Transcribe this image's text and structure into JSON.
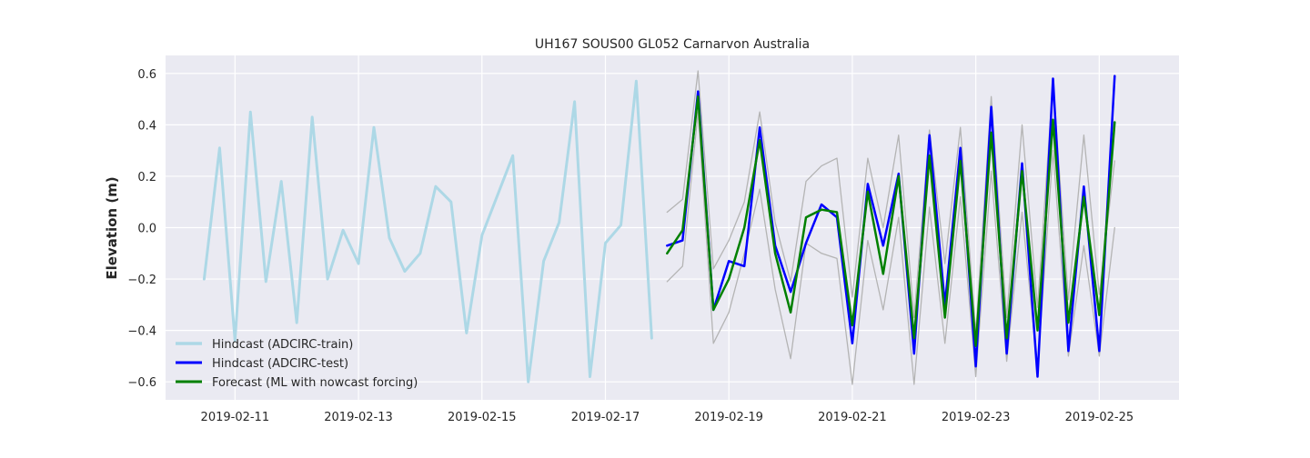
{
  "chart_data": {
    "type": "line",
    "title": "UH167 SOUS00 GL052 Carnarvon Australia",
    "xlabel": "",
    "ylabel": "Elevation (m)",
    "x_axis": "date",
    "xlim": [
      "2019-02-09T21:00",
      "2019-02-26T07:00"
    ],
    "ylim": [
      -0.67,
      0.67
    ],
    "x_ticks": [
      "2019-02-11",
      "2019-02-13",
      "2019-02-15",
      "2019-02-17",
      "2019-02-19",
      "2019-02-21",
      "2019-02-23",
      "2019-02-25"
    ],
    "y_ticks": [
      -0.6,
      -0.4,
      -0.2,
      0.0,
      0.2,
      0.4,
      0.6
    ],
    "y_tick_labels": [
      "−0.6",
      "−0.4",
      "−0.2",
      "0.0",
      "0.2",
      "0.4",
      "0.6"
    ],
    "grid": true,
    "legend_position": "lower-left",
    "background": "#eaeaf2",
    "series": [
      {
        "name": "Hindcast (ADCIRC-train)",
        "color": "#add8e6",
        "width": 3,
        "in_legend": true,
        "points": [
          [
            "2019-02-10T12:00",
            -0.2
          ],
          [
            "2019-02-10T18:00",
            0.31
          ],
          [
            "2019-02-11T00:00",
            -0.44
          ],
          [
            "2019-02-11T06:00",
            0.45
          ],
          [
            "2019-02-11T12:00",
            -0.21
          ],
          [
            "2019-02-11T18:00",
            0.18
          ],
          [
            "2019-02-12T00:00",
            -0.37
          ],
          [
            "2019-02-12T06:00",
            0.43
          ],
          [
            "2019-02-12T12:00",
            -0.2
          ],
          [
            "2019-02-12T18:00",
            -0.01
          ],
          [
            "2019-02-13T00:00",
            -0.14
          ],
          [
            "2019-02-13T06:00",
            0.39
          ],
          [
            "2019-02-13T12:00",
            -0.04
          ],
          [
            "2019-02-13T18:00",
            -0.17
          ],
          [
            "2019-02-14T00:00",
            -0.1
          ],
          [
            "2019-02-14T06:00",
            0.16
          ],
          [
            "2019-02-14T12:00",
            0.1
          ],
          [
            "2019-02-14T18:00",
            -0.41
          ],
          [
            "2019-02-15T00:00",
            -0.03
          ],
          [
            "2019-02-15T12:00",
            0.28
          ],
          [
            "2019-02-15T18:00",
            -0.6
          ],
          [
            "2019-02-16T00:00",
            -0.13
          ],
          [
            "2019-02-16T06:00",
            0.02
          ],
          [
            "2019-02-16T12:00",
            0.49
          ],
          [
            "2019-02-16T18:00",
            -0.58
          ],
          [
            "2019-02-17T00:00",
            -0.06
          ],
          [
            "2019-02-17T06:00",
            0.01
          ],
          [
            "2019-02-17T12:00",
            0.57
          ],
          [
            "2019-02-17T18:00",
            -0.43
          ]
        ]
      },
      {
        "name": "",
        "color": "#b4b4b4",
        "width": 1.3,
        "in_legend": false,
        "points": [
          [
            "2019-02-18T00:00",
            0.06
          ],
          [
            "2019-02-18T06:00",
            0.11
          ],
          [
            "2019-02-18T12:00",
            0.61
          ],
          [
            "2019-02-18T18:00",
            -0.16
          ],
          [
            "2019-02-19T00:00",
            -0.05
          ],
          [
            "2019-02-19T06:00",
            0.1
          ],
          [
            "2019-02-19T12:00",
            0.45
          ],
          [
            "2019-02-19T18:00",
            0.02
          ],
          [
            "2019-02-20T00:00",
            -0.21
          ],
          [
            "2019-02-20T06:00",
            0.18
          ],
          [
            "2019-02-20T12:00",
            0.24
          ],
          [
            "2019-02-20T18:00",
            0.27
          ],
          [
            "2019-02-21T00:00",
            -0.27
          ],
          [
            "2019-02-21T06:00",
            0.27
          ],
          [
            "2019-02-21T12:00",
            0.0
          ],
          [
            "2019-02-21T18:00",
            0.36
          ],
          [
            "2019-02-22T00:00",
            -0.35
          ],
          [
            "2019-02-22T06:00",
            0.38
          ],
          [
            "2019-02-22T12:00",
            -0.14
          ],
          [
            "2019-02-22T18:00",
            0.39
          ],
          [
            "2019-02-23T00:00",
            -0.41
          ],
          [
            "2019-02-23T06:00",
            0.51
          ],
          [
            "2019-02-23T12:00",
            -0.35
          ],
          [
            "2019-02-23T18:00",
            0.4
          ],
          [
            "2019-02-24T00:00",
            -0.31
          ],
          [
            "2019-02-24T06:00",
            0.57
          ],
          [
            "2019-02-24T12:00",
            -0.28
          ],
          [
            "2019-02-24T18:00",
            0.36
          ],
          [
            "2019-02-25T00:00",
            -0.26
          ],
          [
            "2019-02-25T06:00",
            0.26
          ]
        ]
      },
      {
        "name": "",
        "color": "#b4b4b4",
        "width": 1.3,
        "in_legend": false,
        "points": [
          [
            "2019-02-18T00:00",
            -0.21
          ],
          [
            "2019-02-18T06:00",
            -0.15
          ],
          [
            "2019-02-18T12:00",
            0.45
          ],
          [
            "2019-02-18T18:00",
            -0.45
          ],
          [
            "2019-02-19T00:00",
            -0.33
          ],
          [
            "2019-02-19T06:00",
            -0.1
          ],
          [
            "2019-02-19T12:00",
            0.15
          ],
          [
            "2019-02-19T18:00",
            -0.24
          ],
          [
            "2019-02-20T00:00",
            -0.51
          ],
          [
            "2019-02-20T06:00",
            -0.06
          ],
          [
            "2019-02-20T12:00",
            -0.1
          ],
          [
            "2019-02-20T18:00",
            -0.12
          ],
          [
            "2019-02-21T00:00",
            -0.61
          ],
          [
            "2019-02-21T06:00",
            -0.05
          ],
          [
            "2019-02-21T12:00",
            -0.32
          ],
          [
            "2019-02-21T18:00",
            0.04
          ],
          [
            "2019-02-22T00:00",
            -0.61
          ],
          [
            "2019-02-22T06:00",
            0.08
          ],
          [
            "2019-02-22T12:00",
            -0.45
          ],
          [
            "2019-02-22T18:00",
            0.12
          ],
          [
            "2019-02-23T00:00",
            -0.58
          ],
          [
            "2019-02-23T06:00",
            0.22
          ],
          [
            "2019-02-23T12:00",
            -0.52
          ],
          [
            "2019-02-23T18:00",
            0.06
          ],
          [
            "2019-02-24T00:00",
            -0.55
          ],
          [
            "2019-02-24T06:00",
            0.3
          ],
          [
            "2019-02-24T12:00",
            -0.5
          ],
          [
            "2019-02-24T18:00",
            -0.07
          ],
          [
            "2019-02-25T00:00",
            -0.5
          ],
          [
            "2019-02-25T06:00",
            0.0
          ]
        ]
      },
      {
        "name": "Hindcast (ADCIRC-test)",
        "color": "#0000ff",
        "width": 2.5,
        "in_legend": true,
        "points": [
          [
            "2019-02-18T00:00",
            -0.07
          ],
          [
            "2019-02-18T06:00",
            -0.05
          ],
          [
            "2019-02-18T12:00",
            0.53
          ],
          [
            "2019-02-18T18:00",
            -0.32
          ],
          [
            "2019-02-19T00:00",
            -0.13
          ],
          [
            "2019-02-19T06:00",
            -0.15
          ],
          [
            "2019-02-19T12:00",
            0.39
          ],
          [
            "2019-02-19T18:00",
            -0.07
          ],
          [
            "2019-02-20T00:00",
            -0.25
          ],
          [
            "2019-02-20T06:00",
            -0.06
          ],
          [
            "2019-02-20T12:00",
            0.09
          ],
          [
            "2019-02-20T18:00",
            0.04
          ],
          [
            "2019-02-21T00:00",
            -0.45
          ],
          [
            "2019-02-21T06:00",
            0.17
          ],
          [
            "2019-02-21T12:00",
            -0.07
          ],
          [
            "2019-02-21T18:00",
            0.21
          ],
          [
            "2019-02-22T00:00",
            -0.49
          ],
          [
            "2019-02-22T06:00",
            0.36
          ],
          [
            "2019-02-22T12:00",
            -0.3
          ],
          [
            "2019-02-22T18:00",
            0.31
          ],
          [
            "2019-02-23T00:00",
            -0.54
          ],
          [
            "2019-02-23T06:00",
            0.47
          ],
          [
            "2019-02-23T12:00",
            -0.49
          ],
          [
            "2019-02-23T18:00",
            0.25
          ],
          [
            "2019-02-24T00:00",
            -0.58
          ],
          [
            "2019-02-24T06:00",
            0.58
          ],
          [
            "2019-02-24T12:00",
            -0.48
          ],
          [
            "2019-02-24T18:00",
            0.16
          ],
          [
            "2019-02-25T00:00",
            -0.48
          ],
          [
            "2019-02-25T06:00",
            0.59
          ]
        ]
      },
      {
        "name": "Forecast (ML with nowcast forcing)",
        "color": "#008000",
        "width": 2.5,
        "in_legend": true,
        "points": [
          [
            "2019-02-18T00:00",
            -0.1
          ],
          [
            "2019-02-18T06:00",
            -0.01
          ],
          [
            "2019-02-18T12:00",
            0.51
          ],
          [
            "2019-02-18T18:00",
            -0.32
          ],
          [
            "2019-02-19T00:00",
            -0.2
          ],
          [
            "2019-02-19T06:00",
            0.0
          ],
          [
            "2019-02-19T12:00",
            0.34
          ],
          [
            "2019-02-19T18:00",
            -0.1
          ],
          [
            "2019-02-20T00:00",
            -0.33
          ],
          [
            "2019-02-20T06:00",
            0.04
          ],
          [
            "2019-02-20T12:00",
            0.07
          ],
          [
            "2019-02-20T18:00",
            0.06
          ],
          [
            "2019-02-21T00:00",
            -0.38
          ],
          [
            "2019-02-21T06:00",
            0.14
          ],
          [
            "2019-02-21T12:00",
            -0.18
          ],
          [
            "2019-02-21T18:00",
            0.2
          ],
          [
            "2019-02-22T00:00",
            -0.43
          ],
          [
            "2019-02-22T06:00",
            0.28
          ],
          [
            "2019-02-22T12:00",
            -0.35
          ],
          [
            "2019-02-22T18:00",
            0.26
          ],
          [
            "2019-02-23T00:00",
            -0.46
          ],
          [
            "2019-02-23T06:00",
            0.37
          ],
          [
            "2019-02-23T12:00",
            -0.43
          ],
          [
            "2019-02-23T18:00",
            0.22
          ],
          [
            "2019-02-24T00:00",
            -0.4
          ],
          [
            "2019-02-24T06:00",
            0.42
          ],
          [
            "2019-02-24T12:00",
            -0.37
          ],
          [
            "2019-02-24T18:00",
            0.12
          ],
          [
            "2019-02-25T00:00",
            -0.34
          ],
          [
            "2019-02-25T06:00",
            0.41
          ]
        ]
      }
    ]
  }
}
